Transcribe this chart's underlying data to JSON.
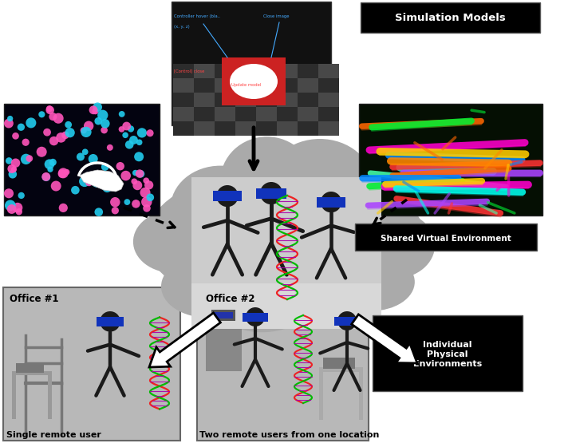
{
  "bg_color": "#ffffff",
  "label_sim_models": "Simulation Models",
  "label_shared_env": "Shared Virtual Environment",
  "label_individual": "Individual\nPhysical\nEnvironments",
  "label_office1": "Office #1",
  "label_office2": "Office #2",
  "label_single": "Single remote user",
  "label_two": "Two remote users from one location",
  "cloud_color": "#aaaaaa",
  "inner_sq_color": "#cccccc",
  "office_bg": "#b8b8b8",
  "figure_dark": "#1a1a1a",
  "vr_blue": "#1133bb",
  "gray_chair": "#888888"
}
